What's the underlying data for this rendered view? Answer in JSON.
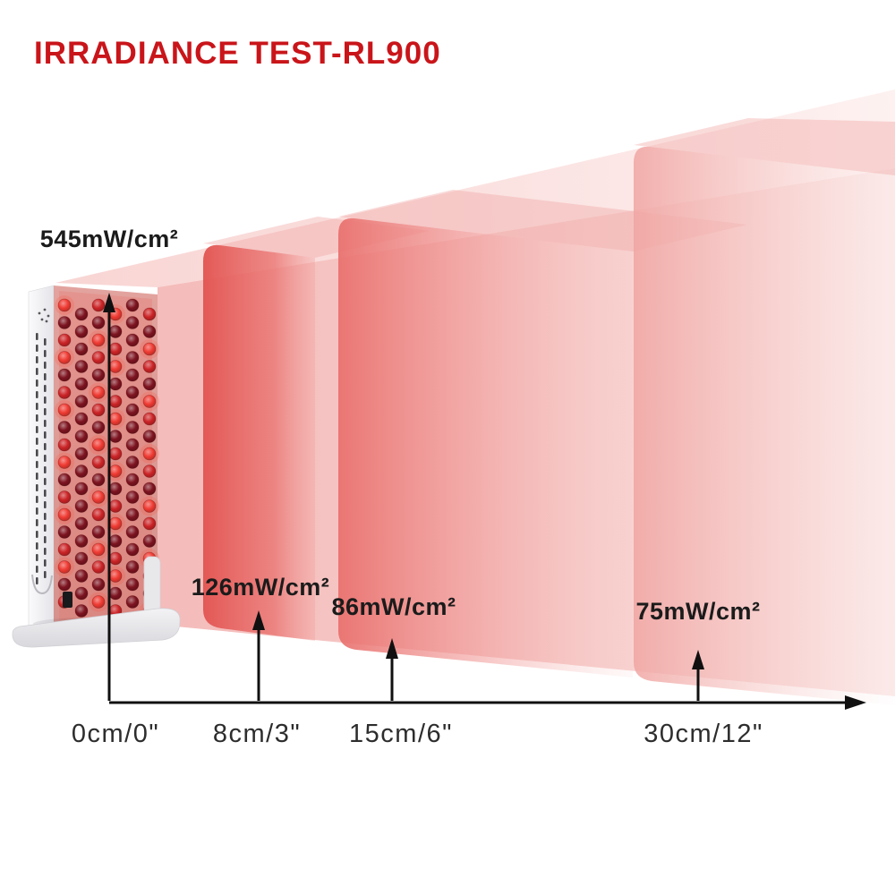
{
  "title": {
    "text": "IRRADIANCE TEST-RL900"
  },
  "colors": {
    "title_red": "#c9151a",
    "value_text": "#1b1b1b",
    "axis_text": "#2d2d2d",
    "beam_light": "#f3b8b6",
    "beam_core": "#e25350",
    "axis_black": "#101010",
    "device_body": "#ececef"
  },
  "device": {
    "led_colors": [
      "#ef3b33",
      "#cb2427",
      "#7d1420"
    ]
  },
  "measurements": [
    {
      "value": "545mW/cm²",
      "distance": "0cm/0\""
    },
    {
      "value": "126mW/cm²",
      "distance": "8cm/3\""
    },
    {
      "value": "86mW/cm²",
      "distance": "15cm/6\""
    },
    {
      "value": "75mW/cm²",
      "distance": "30cm/12\""
    }
  ],
  "chart_data": {
    "type": "area",
    "title": "IRRADIANCE TEST-RL900",
    "x_labels": [
      "0cm/0\"",
      "8cm/3\"",
      "15cm/6\"",
      "30cm/12\""
    ],
    "distances_cm": [
      0,
      8,
      15,
      30
    ],
    "distances_inches": [
      0,
      3,
      6,
      12
    ],
    "values": [
      545,
      126,
      86,
      75
    ],
    "unit": "mW/cm²",
    "legend": "off",
    "grid": "off"
  }
}
